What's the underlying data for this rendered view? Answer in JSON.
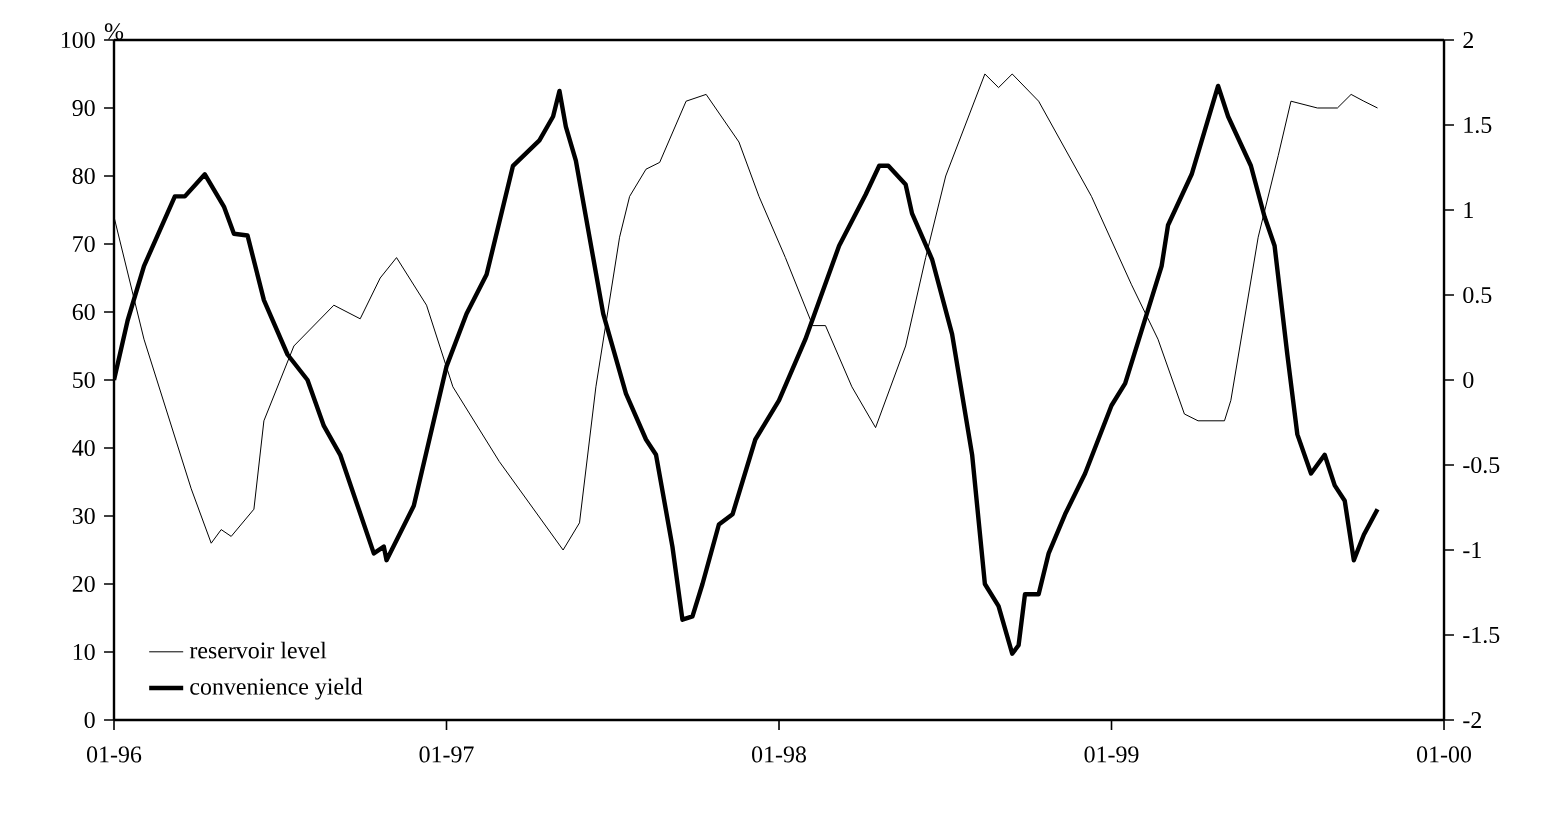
{
  "chart_data": {
    "type": "line",
    "ylabel": "%",
    "xlim": [
      "1996-01-01",
      "2000-01-01"
    ],
    "xticks": [
      {
        "value": "1996-01-01",
        "label": "01-96"
      },
      {
        "value": "1997-01-01",
        "label": "01-97"
      },
      {
        "value": "1998-01-01",
        "label": "01-98"
      },
      {
        "value": "1999-01-01",
        "label": "01-99"
      },
      {
        "value": "2000-01-01",
        "label": "01-00"
      }
    ],
    "ylim": [
      0,
      100
    ],
    "yticks": [
      0,
      10,
      20,
      30,
      40,
      50,
      60,
      70,
      80,
      90,
      100
    ],
    "y2lim": [
      -2,
      2
    ],
    "y2ticks": [
      -2,
      -1.5,
      -1,
      -0.5,
      0,
      0.5,
      1,
      1.5,
      2
    ],
    "legend": "bottom left",
    "series": [
      {
        "name": "reservoir level",
        "color": "#000000",
        "x": [
          "1996-01-01",
          "1996-02-03",
          "1996-03-26",
          "1996-04-17",
          "1996-04-28",
          "1996-05-09",
          "1996-06-03",
          "1996-06-14",
          "1996-07-17",
          "1996-08-30",
          "1996-09-28",
          "1996-10-20",
          "1996-11-07",
          "1996-12-10",
          "1997-01-08",
          "1997-02-28",
          "1997-05-09",
          "1997-05-27",
          "1997-06-14",
          "1997-07-10",
          "1997-07-21",
          "1997-08-08",
          "1997-08-23",
          "1997-09-21",
          "1997-10-13",
          "1997-11-18",
          "1997-12-10",
          "1998-01-08",
          "1998-02-07",
          "1998-02-21",
          "1998-03-22",
          "1998-04-17",
          "1998-05-20",
          "1998-06-11",
          "1998-07-03",
          "1998-08-15",
          "1998-08-30",
          "1998-09-14",
          "1998-10-13",
          "1998-12-10",
          "1999-01-23",
          "1999-02-21",
          "1999-03-22",
          "1999-04-06",
          "1999-05-05",
          "1999-05-12",
          "1999-06-11",
          "1999-07-03",
          "1999-07-17",
          "1999-08-15",
          "1999-09-06",
          "1999-09-21",
          "1999-10-05",
          "1999-10-20"
        ],
        "values": [
          74,
          56,
          34,
          26,
          28,
          27,
          31,
          44,
          55,
          61,
          59,
          65,
          68,
          61,
          49,
          38,
          25,
          29,
          49,
          71,
          77,
          81,
          82,
          91,
          92,
          85,
          77,
          68,
          58,
          58,
          49,
          43,
          55,
          68,
          80,
          95,
          93,
          95,
          91,
          77,
          64,
          56,
          45,
          44,
          44,
          47,
          71,
          83,
          91,
          90,
          90,
          92,
          91,
          90
        ]
      },
      {
        "name": "convenience yield",
        "color": "#000000",
        "axis": "y2",
        "x": [
          "1996-01-01",
          "1996-01-16",
          "1996-02-03",
          "1996-03-08",
          "1996-03-19",
          "1996-04-10",
          "1996-05-01",
          "1996-05-12",
          "1996-05-27",
          "1996-06-14",
          "1996-07-10",
          "1996-08-01",
          "1996-08-19",
          "1996-09-06",
          "1996-10-13",
          "1996-10-24",
          "1996-10-27",
          "1996-11-26",
          "1997-01-01",
          "1997-01-23",
          "1997-02-14",
          "1997-03-15",
          "1997-04-13",
          "1997-04-28",
          "1997-05-05",
          "1997-05-12",
          "1997-05-23",
          "1997-06-22",
          "1997-07-17",
          "1997-08-08",
          "1997-08-19",
          "1997-09-06",
          "1997-09-17",
          "1997-09-28",
          "1997-10-09",
          "1997-10-27",
          "1997-11-11",
          "1997-12-06",
          "1998-01-01",
          "1998-01-30",
          "1998-03-08",
          "1998-04-06",
          "1998-04-21",
          "1998-05-01",
          "1998-05-20",
          "1998-05-27",
          "1998-06-18",
          "1998-07-10",
          "1998-08-01",
          "1998-08-15",
          "1998-08-30",
          "1998-09-14",
          "1998-09-21",
          "1998-09-28",
          "1998-10-13",
          "1998-10-24",
          "1998-11-11",
          "1998-12-03",
          "1999-01-01",
          "1999-01-16",
          "1999-02-03",
          "1999-02-25",
          "1999-03-04",
          "1999-03-30",
          "1999-04-28",
          "1999-05-09",
          "1999-06-03",
          "1999-06-18",
          "1999-06-29",
          "1999-07-13",
          "1999-07-24",
          "1999-08-08",
          "1999-08-23",
          "1999-09-03",
          "1999-09-14",
          "1999-09-24",
          "1999-10-05",
          "1999-10-20"
        ],
        "values": [
          0.0,
          0.35,
          0.67,
          1.08,
          1.08,
          1.21,
          1.02,
          0.86,
          0.85,
          0.47,
          0.15,
          0.0,
          -0.27,
          -0.44,
          -1.02,
          -0.98,
          -1.06,
          -0.74,
          0.08,
          0.39,
          0.62,
          1.26,
          1.41,
          1.55,
          1.7,
          1.49,
          1.29,
          0.39,
          -0.08,
          -0.35,
          -0.44,
          -0.98,
          -1.41,
          -1.39,
          -1.2,
          -0.85,
          -0.79,
          -0.35,
          -0.12,
          0.24,
          0.79,
          1.09,
          1.26,
          1.26,
          1.15,
          0.98,
          0.71,
          0.27,
          -0.44,
          -1.2,
          -1.33,
          -1.61,
          -1.56,
          -1.26,
          -1.26,
          -1.02,
          -0.79,
          -0.55,
          -0.15,
          -0.02,
          0.29,
          0.67,
          0.91,
          1.21,
          1.73,
          1.55,
          1.26,
          0.96,
          0.79,
          0.15,
          -0.32,
          -0.55,
          -0.44,
          -0.62,
          -0.71,
          -1.06,
          -0.91,
          -0.76
        ]
      }
    ]
  }
}
